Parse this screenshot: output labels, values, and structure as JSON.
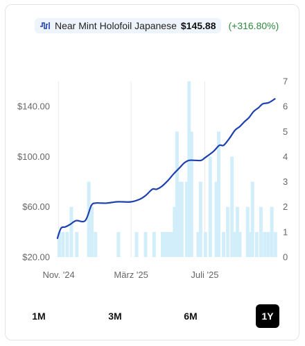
{
  "legend": {
    "icon": "line-chart-icon",
    "series_name": "Near Mint Holofoil Japanese",
    "price": "$145.88",
    "change": "(+316.80%)",
    "line_color": "#1e40af",
    "bar_color": "#d3eefb",
    "change_color": "#2e8b3e"
  },
  "range_buttons": [
    {
      "label": "1M",
      "active": false
    },
    {
      "label": "3M",
      "active": false
    },
    {
      "label": "6M",
      "active": false
    },
    {
      "label": "1Y",
      "active": true
    }
  ],
  "chart_data": {
    "type": "line",
    "x_tick_labels": [
      "Nov. '24",
      "März '25",
      "Juli '25"
    ],
    "x_ticks": [
      "2024-11",
      "2025-03",
      "2025-07"
    ],
    "x_range": [
      "2024-10-29",
      "2025-10-29"
    ],
    "y_left": {
      "ticks": [
        "$20.00",
        "$60.00",
        "$100.00",
        "$140.00"
      ],
      "values": [
        20,
        60,
        100,
        140
      ],
      "range": [
        20,
        160
      ]
    },
    "y_right": {
      "ticks": [
        "0",
        "1",
        "2",
        "3",
        "4",
        "5",
        "6",
        "7"
      ],
      "range": [
        0,
        7
      ]
    },
    "grid": "vertical",
    "series": [
      {
        "type": "line",
        "axis": "left",
        "x": [
          "2024-10-30",
          "2024-11-05",
          "2024-11-12",
          "2024-11-20",
          "2024-11-30",
          "2024-12-15",
          "2024-12-25",
          "2025-01-01",
          "2025-01-10",
          "2025-01-20",
          "2025-02-05",
          "2025-02-15",
          "2025-03-01",
          "2025-03-15",
          "2025-03-25",
          "2025-04-05",
          "2025-04-12",
          "2025-04-20",
          "2025-05-01",
          "2025-05-10",
          "2025-05-20",
          "2025-05-28",
          "2025-06-05",
          "2025-06-15",
          "2025-06-25",
          "2025-07-01",
          "2025-07-15",
          "2025-07-25",
          "2025-08-01",
          "2025-08-10",
          "2025-08-20",
          "2025-08-28",
          "2025-09-05",
          "2025-09-12",
          "2025-09-20",
          "2025-09-28",
          "2025-10-05",
          "2025-10-15",
          "2025-10-25"
        ],
        "values": [
          35,
          43,
          44,
          46,
          49,
          49,
          61,
          63,
          63,
          63,
          64,
          64,
          64,
          66,
          69,
          74,
          74,
          76,
          81,
          86,
          91,
          95,
          97,
          97,
          97,
          99,
          104,
          109,
          109,
          114,
          121,
          124,
          128,
          131,
          136,
          139,
          142,
          143,
          146
        ]
      },
      {
        "type": "bar",
        "axis": "right",
        "x": [
          "2024-11-02",
          "2024-11-08",
          "2024-11-15",
          "2024-11-22",
          "2024-12-01",
          "2024-12-21",
          "2024-12-26",
          "2025-01-01",
          "2025-02-08",
          "2025-03-10",
          "2025-03-25",
          "2025-04-08",
          "2025-04-22",
          "2025-04-26",
          "2025-04-30",
          "2025-05-04",
          "2025-05-08",
          "2025-05-12",
          "2025-05-16",
          "2025-05-20",
          "2025-05-24",
          "2025-06-01",
          "2025-06-05",
          "2025-06-09",
          "2025-06-20",
          "2025-06-24",
          "2025-07-02",
          "2025-07-10",
          "2025-07-20",
          "2025-07-24",
          "2025-08-01",
          "2025-08-08",
          "2025-08-15",
          "2025-08-20",
          "2025-08-24",
          "2025-08-28",
          "2025-09-10",
          "2025-09-14",
          "2025-09-18",
          "2025-09-25",
          "2025-10-02",
          "2025-10-08",
          "2025-10-14",
          "2025-10-20",
          "2025-10-26"
        ],
        "values": [
          1,
          1,
          1,
          2,
          1,
          3,
          2,
          1,
          1,
          1,
          1,
          1,
          1,
          1,
          1,
          1,
          1,
          2,
          5,
          3,
          3,
          3,
          7,
          5,
          1,
          3,
          1,
          4,
          3,
          5,
          1,
          2,
          4,
          1,
          2,
          1,
          2,
          1,
          3,
          1,
          2,
          1,
          1,
          2,
          1
        ]
      }
    ]
  }
}
